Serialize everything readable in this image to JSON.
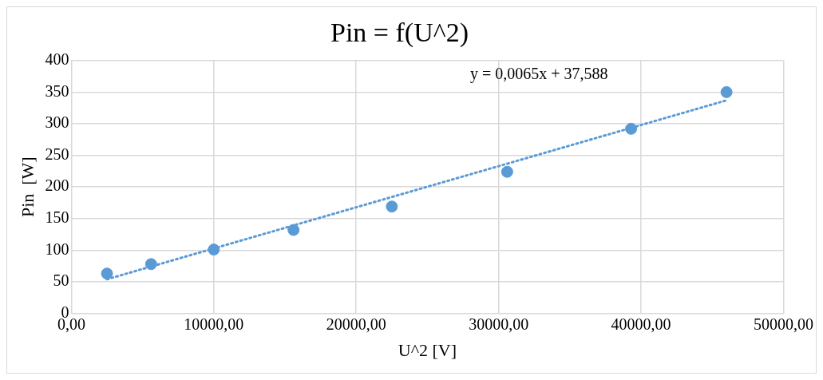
{
  "chart_data": {
    "type": "scatter",
    "title": "Pin = f(U^2)",
    "xlabel": "U^2 [V]",
    "ylabel": "Pin  [W]",
    "xlim": [
      0,
      50000
    ],
    "xticks": [
      {
        "value": 0,
        "label": "0,00"
      },
      {
        "value": 10000,
        "label": "10000,00"
      },
      {
        "value": 20000,
        "label": "20000,00"
      },
      {
        "value": 30000,
        "label": "30000,00"
      },
      {
        "value": 40000,
        "label": "40000,00"
      },
      {
        "value": 50000,
        "label": "50000,00"
      }
    ],
    "ylim": [
      0,
      400
    ],
    "yticks": [
      0,
      50,
      100,
      150,
      200,
      250,
      300,
      350,
      400
    ],
    "grid": true,
    "marker": "circle",
    "annotations": [
      "y = 0,0065x + 37,588"
    ],
    "series": [
      {
        "type": "scatter",
        "color": "#5b9bd5",
        "x": [
          2500,
          5600,
          10000,
          15600,
          22500,
          30600,
          39300,
          46000
        ],
        "values": [
          63,
          78,
          101,
          132,
          169,
          224,
          292,
          350
        ]
      },
      {
        "type": "line",
        "color": "#5b9bd5",
        "line_style": "dotted",
        "marker": "none",
        "x": [
          2500,
          46000
        ],
        "values": [
          54,
          337
        ]
      }
    ]
  }
}
